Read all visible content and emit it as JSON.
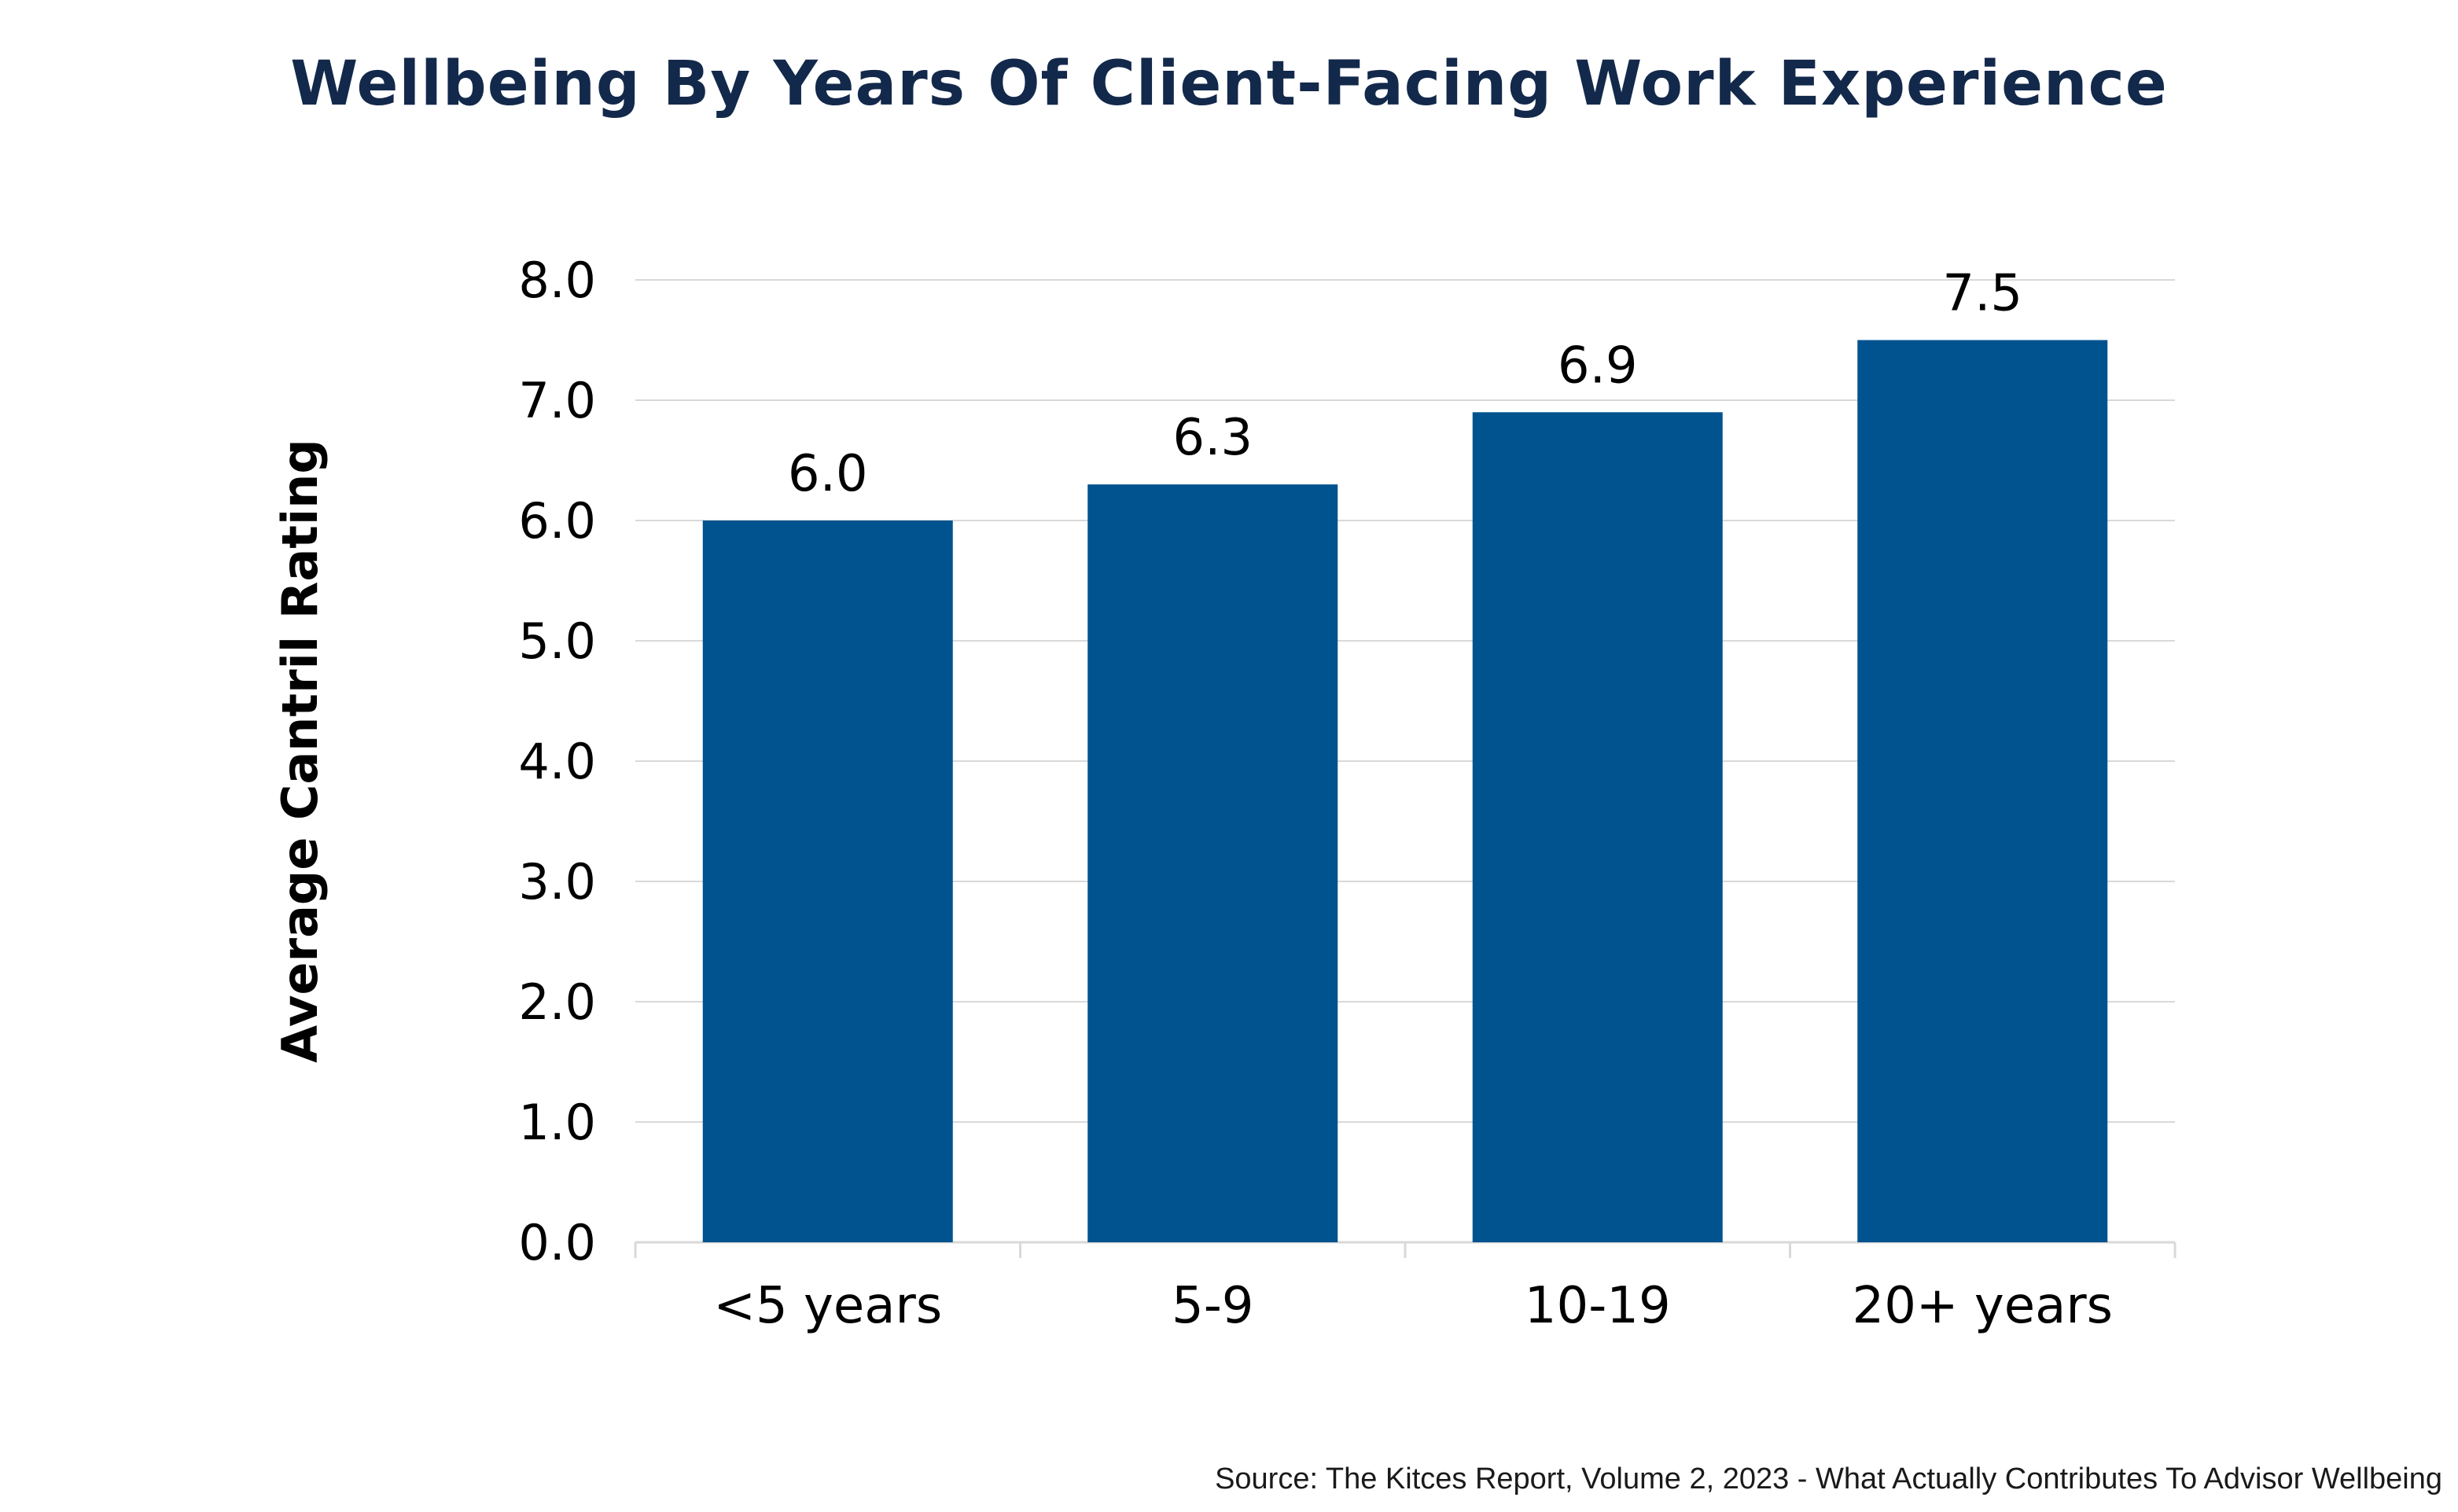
{
  "chart_data": {
    "type": "bar",
    "title": "Wellbeing By Years Of Client-Facing Work Experience",
    "xlabel": "",
    "ylabel": "Average Cantril Rating",
    "categories": [
      "<5 years",
      "5-9",
      "10-19",
      "20+ years"
    ],
    "values": [
      6.0,
      6.3,
      6.9,
      7.5
    ],
    "value_labels": [
      "6.0",
      "6.3",
      "6.9",
      "7.5"
    ],
    "ylim": [
      0,
      8
    ],
    "yticks": [
      "0.0",
      "1.0",
      "2.0",
      "3.0",
      "4.0",
      "5.0",
      "6.0",
      "7.0",
      "8.0"
    ],
    "grid": true,
    "legend": "none",
    "bar_color": "#00538f"
  },
  "source": "Source: The Kitces Report, Volume 2, 2023 - What Actually Contributes To Advisor Wellbeing",
  "colors": {
    "title": "#13294b",
    "bar": "#00538f",
    "grid": "#d9d9d9",
    "text": "#000000"
  }
}
